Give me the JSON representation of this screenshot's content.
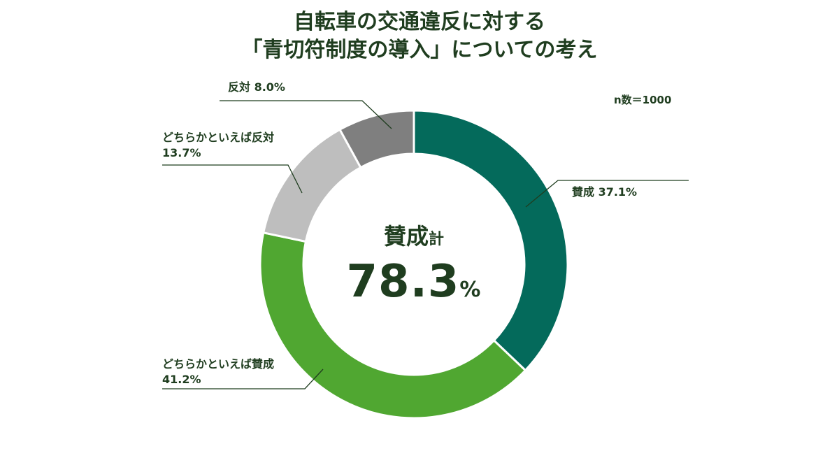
{
  "title_line1": "自転車の交通違反に対する",
  "title_line2": "「青切符制度の導入」についての考え",
  "sample_size": "n数＝1000",
  "center": {
    "main": "賛成",
    "suffix": "計",
    "value": "78.3",
    "unit": "%"
  },
  "colors": {
    "text": "#1f3d1f",
    "agree": "#046a5b",
    "somewhat_agree": "#50a731",
    "somewhat_disagree": "#bebebe",
    "disagree": "#7f7f7f"
  },
  "chart_data": {
    "type": "pie",
    "donut": true,
    "title": "自転車の交通違反に対する「青切符制度の導入」についての考え",
    "slices": [
      {
        "name": "賛成",
        "value": 37.1,
        "label": "賛成 37.1%",
        "color": "#046a5b"
      },
      {
        "name": "どちらかといえば賛成",
        "value": 41.2,
        "label_line1": "どちらかといえば賛成",
        "label_line2": "41.2%",
        "color": "#50a731"
      },
      {
        "name": "どちらかといえば反対",
        "value": 13.7,
        "label_line1": "どちらかといえば反対",
        "label_line2": "13.7%",
        "color": "#bebebe"
      },
      {
        "name": "反対",
        "value": 8.0,
        "label": "反対 8.0%",
        "color": "#7f7f7f"
      }
    ]
  }
}
